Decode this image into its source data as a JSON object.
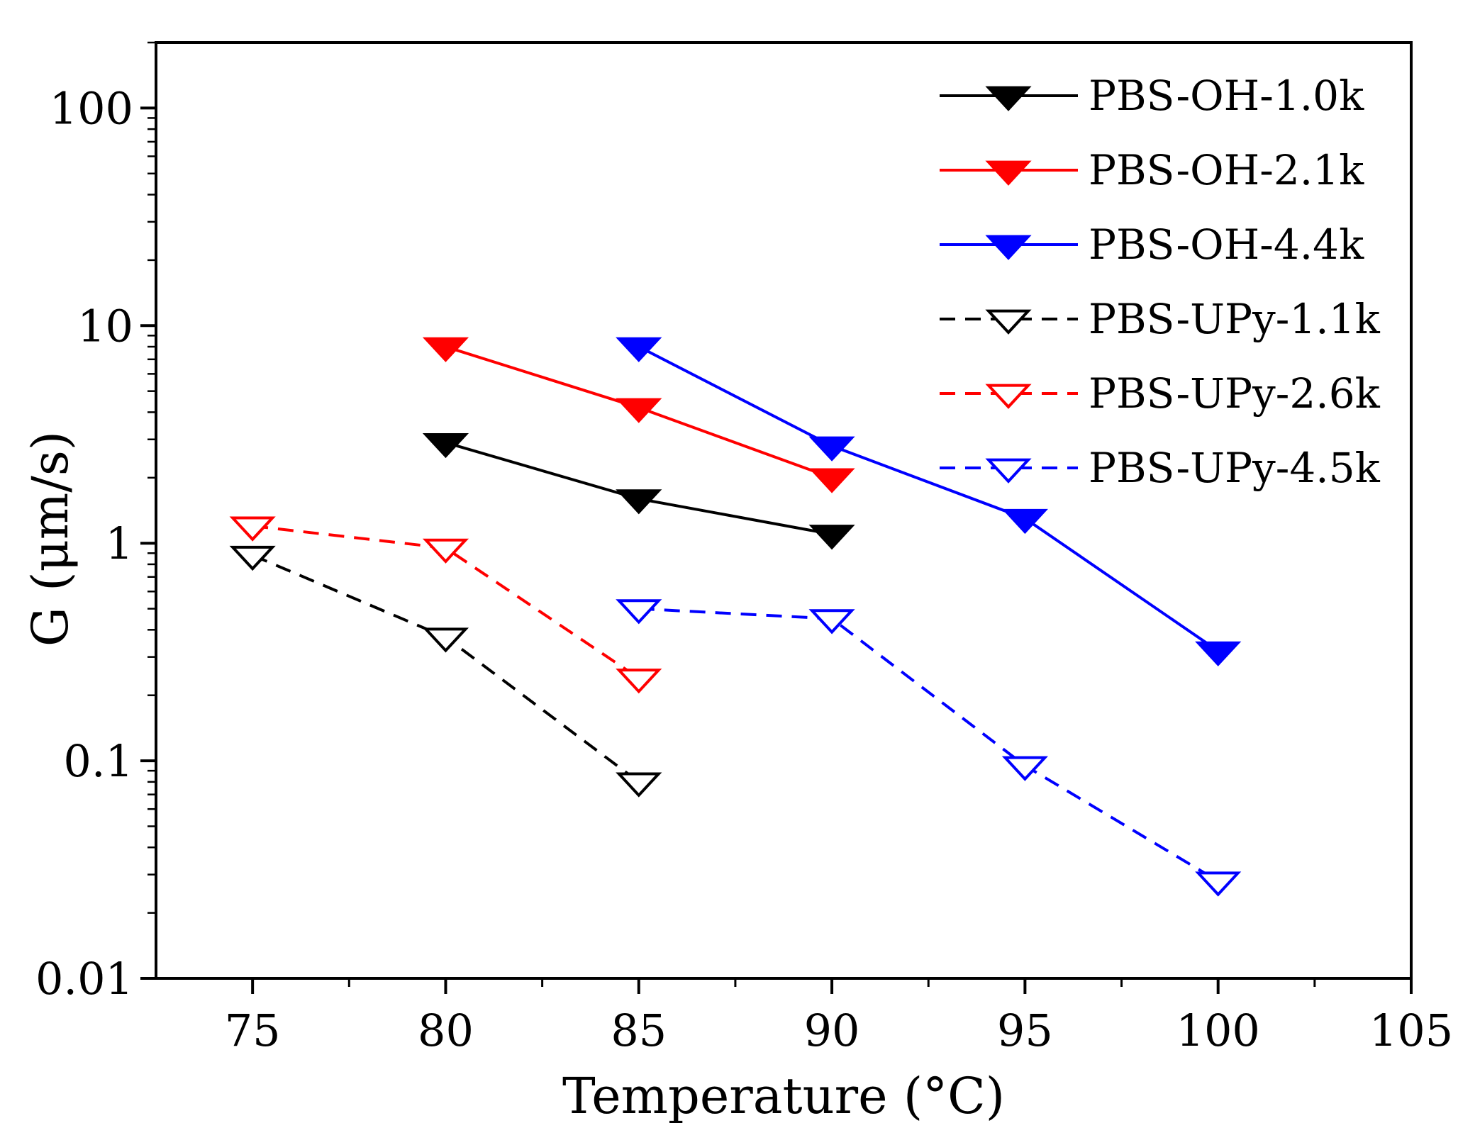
{
  "chart_data": {
    "type": "line",
    "title": "",
    "xlabel": "Temperature (°C)",
    "ylabel": "G (μm/s)",
    "xlim": [
      72.5,
      105
    ],
    "ylim": [
      0.01,
      200
    ],
    "yscale": "log",
    "x_ticks": [
      "75",
      "80",
      "85",
      "90",
      "95",
      "100",
      "105"
    ],
    "y_ticks": [
      "0.01",
      "0.1",
      "1",
      "10",
      "100"
    ],
    "legend_position": "top-right",
    "series": [
      {
        "name": "PBS-OH-1.0k",
        "color": "#000000",
        "style": "solid",
        "marker": "filled-down-triangle",
        "x": [
          80,
          85,
          90
        ],
        "values": [
          2.9,
          1.6,
          1.1
        ]
      },
      {
        "name": "PBS-OH-2.1k",
        "color": "#ff0000",
        "style": "solid",
        "marker": "filled-down-triangle",
        "x": [
          80,
          85,
          90
        ],
        "values": [
          8.0,
          4.2,
          2.0
        ]
      },
      {
        "name": "PBS-OH-4.4k",
        "color": "#0000ff",
        "style": "solid",
        "marker": "filled-down-triangle",
        "x": [
          85,
          90,
          95,
          100
        ],
        "values": [
          8.0,
          2.8,
          1.3,
          0.32
        ]
      },
      {
        "name": "PBS-UPy-1.1k",
        "color": "#000000",
        "style": "dashed",
        "marker": "open-down-triangle",
        "x": [
          75,
          80,
          85
        ],
        "values": [
          0.88,
          0.37,
          0.08
        ]
      },
      {
        "name": "PBS-UPy-2.6k",
        "color": "#ff0000",
        "style": "dashed",
        "marker": "open-down-triangle",
        "x": [
          75,
          80,
          85
        ],
        "values": [
          1.2,
          0.95,
          0.24
        ]
      },
      {
        "name": "PBS-UPy-4.5k",
        "color": "#0000ff",
        "style": "dashed",
        "marker": "open-down-triangle",
        "x": [
          85,
          90,
          95,
          100
        ],
        "values": [
          0.5,
          0.45,
          0.095,
          0.028
        ]
      }
    ]
  }
}
